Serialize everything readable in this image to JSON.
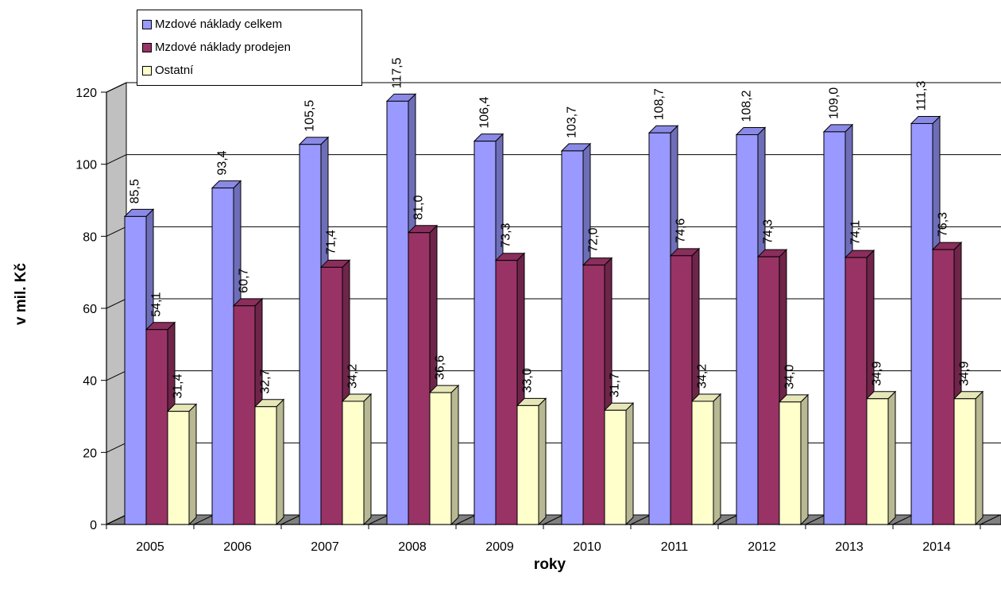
{
  "chart_data": {
    "type": "bar",
    "categories": [
      "2005",
      "2006",
      "2007",
      "2008",
      "2009",
      "2010",
      "2011",
      "2012",
      "2013",
      "2014"
    ],
    "series": [
      {
        "name": "Mzdové náklady celkem",
        "values": [
          85.5,
          93.4,
          105.5,
          117.5,
          106.4,
          103.7,
          108.7,
          108.2,
          109.0,
          111.3
        ],
        "labels": [
          "85,5",
          "93,4",
          "105,5",
          "117,5",
          "106,4",
          "103,7",
          "108,7",
          "108,2",
          "109,0",
          "111,3"
        ],
        "color": "#9999FF"
      },
      {
        "name": "Mzdové náklady prodejen",
        "values": [
          54.1,
          60.7,
          71.4,
          81.0,
          73.3,
          72.0,
          74.6,
          74.3,
          74.1,
          76.3
        ],
        "labels": [
          "54,1",
          "60,7",
          "71,4",
          "81,0",
          "73,3",
          "72,0",
          "74,6",
          "74,3",
          "74,1",
          "76,3"
        ],
        "color": "#993366"
      },
      {
        "name": "Ostatní",
        "values": [
          31.4,
          32.7,
          34.2,
          36.6,
          33.0,
          31.7,
          34.2,
          34.0,
          34.9,
          34.9
        ],
        "labels": [
          "31,4",
          "32,7",
          "34,2",
          "36,6",
          "33,0",
          "31,7",
          "34,2",
          "34,0",
          "34,9",
          "34,9"
        ],
        "color": "#FFFFCC"
      }
    ],
    "xlabel": "roky",
    "ylabel": "v mil. Kč",
    "ylim": [
      0,
      120
    ],
    "yticks": [
      0,
      20,
      40,
      60,
      80,
      100,
      120
    ],
    "grid": true,
    "three_d": true,
    "legend_position": "top-left",
    "wall_color": "#C0C0C0",
    "floor_color": "#808080"
  }
}
